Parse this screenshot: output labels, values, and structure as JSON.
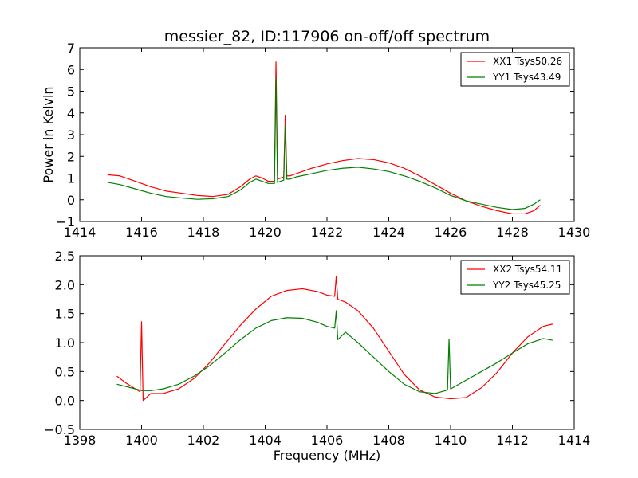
{
  "chart_data": [
    {
      "type": "line",
      "title": "messier_82, ID:117906 on-off/off spectrum",
      "xlabel": "",
      "ylabel": "Power in Kelvin",
      "xlim": [
        1414,
        1430
      ],
      "ylim": [
        -1,
        7
      ],
      "xticks": [
        1414,
        1416,
        1418,
        1420,
        1422,
        1424,
        1426,
        1428,
        1430
      ],
      "yticks": [
        -1,
        0,
        1,
        2,
        3,
        4,
        5,
        6,
        7
      ],
      "xtick_labels": [
        "1414",
        "1416",
        "1418",
        "1420",
        "1422",
        "1424",
        "1426",
        "1428",
        "1430"
      ],
      "ytick_labels": [
        "−1",
        "0",
        "1",
        "2",
        "3",
        "4",
        "5",
        "6",
        "7"
      ],
      "grid": false,
      "legend_position": "top-right",
      "series": [
        {
          "name": "XX1 Tsys50.26",
          "color": "#ff0000",
          "x": [
            1414.9,
            1415.3,
            1415.8,
            1416.3,
            1416.8,
            1417.3,
            1417.8,
            1418.3,
            1418.8,
            1419.2,
            1419.5,
            1419.7,
            1419.9,
            1420.1,
            1420.3,
            1420.35,
            1420.4,
            1420.5,
            1420.6,
            1420.65,
            1420.7,
            1420.8,
            1421.0,
            1421.5,
            1422.0,
            1422.5,
            1423.0,
            1423.5,
            1424.0,
            1424.5,
            1425.0,
            1425.5,
            1426.0,
            1426.5,
            1427.0,
            1427.5,
            1428.0,
            1428.4,
            1428.7,
            1428.9
          ],
          "y": [
            1.15,
            1.1,
            0.85,
            0.6,
            0.4,
            0.3,
            0.2,
            0.15,
            0.25,
            0.6,
            0.95,
            1.1,
            1.0,
            0.85,
            0.85,
            6.35,
            0.95,
            1.0,
            1.05,
            3.9,
            1.1,
            1.1,
            1.2,
            1.45,
            1.65,
            1.8,
            1.9,
            1.85,
            1.7,
            1.45,
            1.1,
            0.7,
            0.3,
            -0.05,
            -0.3,
            -0.5,
            -0.65,
            -0.65,
            -0.5,
            -0.25
          ]
        },
        {
          "name": "YY1 Tsys43.49",
          "color": "#008000",
          "x": [
            1414.9,
            1415.3,
            1415.8,
            1416.3,
            1416.8,
            1417.3,
            1417.8,
            1418.3,
            1418.8,
            1419.2,
            1419.5,
            1419.7,
            1419.9,
            1420.1,
            1420.3,
            1420.35,
            1420.4,
            1420.5,
            1420.6,
            1420.65,
            1420.7,
            1420.8,
            1421.0,
            1421.5,
            1422.0,
            1422.5,
            1423.0,
            1423.5,
            1424.0,
            1424.5,
            1425.0,
            1425.5,
            1426.0,
            1426.5,
            1427.0,
            1427.5,
            1428.0,
            1428.4,
            1428.7,
            1428.9
          ],
          "y": [
            0.8,
            0.7,
            0.5,
            0.3,
            0.15,
            0.08,
            0.02,
            0.05,
            0.15,
            0.45,
            0.8,
            0.95,
            0.85,
            0.75,
            0.75,
            5.6,
            0.8,
            0.85,
            0.9,
            3.4,
            0.95,
            0.95,
            1.05,
            1.2,
            1.35,
            1.45,
            1.5,
            1.42,
            1.3,
            1.1,
            0.85,
            0.55,
            0.2,
            -0.05,
            -0.2,
            -0.35,
            -0.45,
            -0.4,
            -0.2,
            0.0
          ]
        }
      ]
    },
    {
      "type": "line",
      "title": "",
      "xlabel": "Frequency (MHz)",
      "ylabel": "",
      "xlim": [
        1398,
        1414
      ],
      "ylim": [
        -0.5,
        2.5
      ],
      "xticks": [
        1398,
        1400,
        1402,
        1404,
        1406,
        1408,
        1410,
        1412,
        1414
      ],
      "yticks": [
        -0.5,
        0.0,
        0.5,
        1.0,
        1.5,
        2.0,
        2.5
      ],
      "xtick_labels": [
        "1398",
        "1400",
        "1402",
        "1404",
        "1406",
        "1408",
        "1410",
        "1412",
        "1414"
      ],
      "ytick_labels": [
        "−0.5",
        "0.0",
        "0.5",
        "1.0",
        "1.5",
        "2.0",
        "2.5"
      ],
      "grid": false,
      "legend_position": "top-right",
      "series": [
        {
          "name": "XX2 Tsys54.11",
          "color": "#ff0000",
          "x": [
            1399.2,
            1399.5,
            1399.8,
            1399.95,
            1400.0,
            1400.05,
            1400.3,
            1400.7,
            1401.2,
            1401.7,
            1402.2,
            1402.7,
            1403.2,
            1403.7,
            1404.2,
            1404.7,
            1405.2,
            1405.7,
            1406.0,
            1406.25,
            1406.3,
            1406.35,
            1406.6,
            1407.0,
            1407.5,
            1408.0,
            1408.5,
            1409.0,
            1409.5,
            1410.0,
            1410.5,
            1411.0,
            1411.5,
            1412.0,
            1412.5,
            1413.0,
            1413.3
          ],
          "y": [
            0.42,
            0.3,
            0.2,
            0.15,
            1.36,
            0.0,
            0.12,
            0.12,
            0.2,
            0.38,
            0.65,
            0.98,
            1.3,
            1.58,
            1.8,
            1.9,
            1.93,
            1.88,
            1.82,
            1.8,
            2.15,
            1.75,
            1.7,
            1.55,
            1.25,
            0.85,
            0.45,
            0.18,
            0.06,
            0.03,
            0.05,
            0.22,
            0.48,
            0.82,
            1.1,
            1.28,
            1.32
          ]
        },
        {
          "name": "YY2 Tsys45.25",
          "color": "#008000",
          "x": [
            1399.2,
            1399.5,
            1399.8,
            1400.0,
            1400.3,
            1400.7,
            1401.2,
            1401.7,
            1402.2,
            1402.7,
            1403.2,
            1403.7,
            1404.2,
            1404.7,
            1405.2,
            1405.7,
            1406.0,
            1406.25,
            1406.3,
            1406.35,
            1406.6,
            1407.0,
            1407.5,
            1408.0,
            1408.5,
            1409.0,
            1409.5,
            1409.9,
            1409.95,
            1410.0,
            1410.5,
            1411.0,
            1411.5,
            1412.0,
            1412.5,
            1413.0,
            1413.3
          ],
          "y": [
            0.28,
            0.24,
            0.2,
            0.17,
            0.17,
            0.2,
            0.28,
            0.42,
            0.6,
            0.82,
            1.05,
            1.25,
            1.38,
            1.43,
            1.42,
            1.35,
            1.28,
            1.25,
            1.55,
            1.05,
            1.18,
            1.0,
            0.75,
            0.5,
            0.28,
            0.15,
            0.12,
            0.18,
            1.06,
            0.2,
            0.35,
            0.5,
            0.65,
            0.82,
            0.98,
            1.07,
            1.04
          ]
        }
      ]
    }
  ]
}
